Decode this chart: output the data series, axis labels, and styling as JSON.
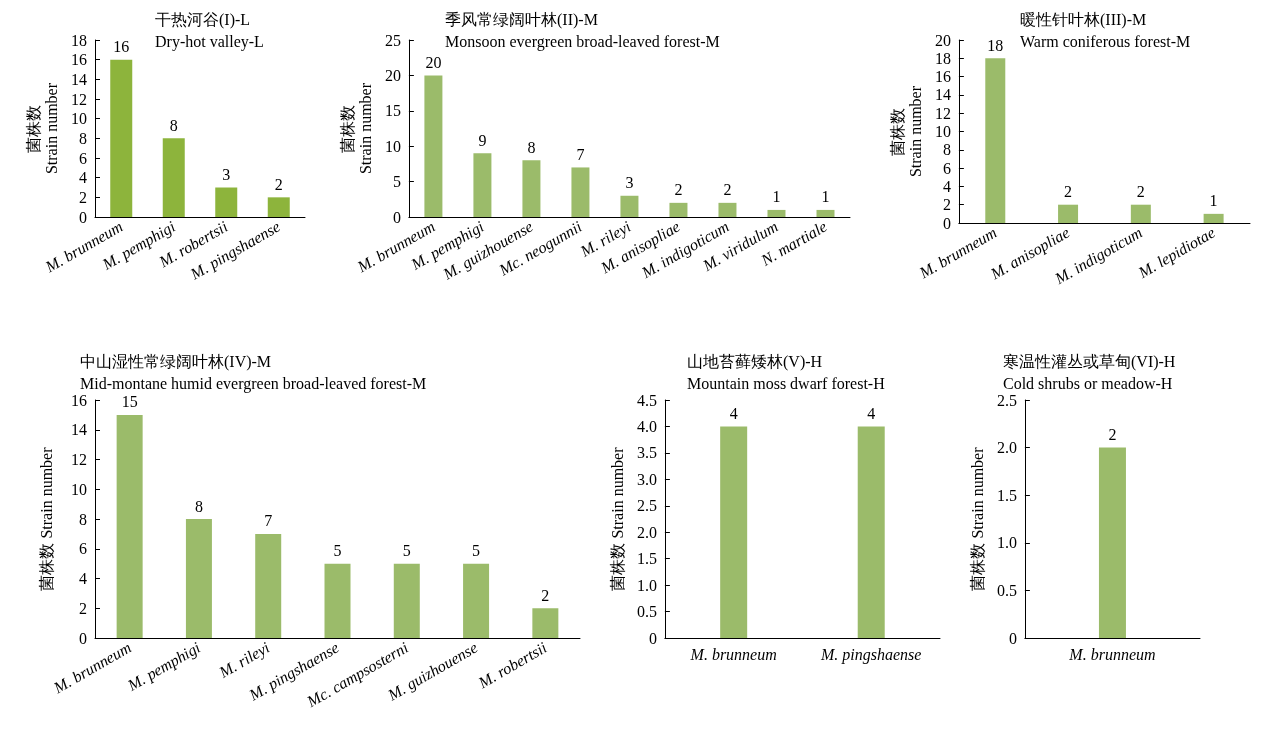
{
  "chart_data": [
    {
      "type": "bar",
      "title": "干热河谷(I)-L",
      "subtitle": "Dry-hot valley-L",
      "ylabel": "菌株数 Strain number",
      "categories": [
        "M. brunneum",
        "M. pemphigi",
        "M. robertsii",
        "M. pingshaense"
      ],
      "values": [
        16,
        8,
        3,
        2
      ],
      "color": "#8db43c",
      "ylim": [
        0,
        18
      ],
      "yticks": [
        0,
        2,
        4,
        6,
        8,
        10,
        12,
        14,
        16,
        18
      ],
      "data_labels": true,
      "grid": false
    },
    {
      "type": "bar",
      "title": "季风常绿阔叶林(II)-M",
      "subtitle": "Monsoon evergreen broad-leaved forest-M",
      "ylabel": "菌株数 Strain number",
      "categories": [
        "M. brunneum",
        "M. pemphigi",
        "M. guizhouense",
        "Mc. neogunnii",
        "M. rileyi",
        "M. anisopliae",
        "M. indigoticum",
        "M. viridulum",
        "N. martiale"
      ],
      "values": [
        20,
        9,
        8,
        7,
        3,
        2,
        2,
        1,
        1
      ],
      "color": "#9bbb6a",
      "ylim": [
        0,
        25
      ],
      "yticks": [
        0,
        5,
        10,
        15,
        20,
        25
      ],
      "data_labels": true,
      "grid": false
    },
    {
      "type": "bar",
      "title": "暖性针叶林(III)-M",
      "subtitle": "Warm coniferous forest-M",
      "ylabel": "菌株数 Strain number",
      "categories": [
        "M. brunneum",
        "M. anisopliae",
        "M. indigoticum",
        "M. lepidiotae"
      ],
      "values": [
        18,
        2,
        2,
        1
      ],
      "color": "#9bbb6a",
      "ylim": [
        0,
        20
      ],
      "yticks": [
        0,
        2,
        4,
        6,
        8,
        10,
        12,
        14,
        16,
        18,
        20
      ],
      "data_labels": true,
      "grid": false
    },
    {
      "type": "bar",
      "title": "中山湿性常绿阔叶林(IV)-M",
      "subtitle": "Mid-montane humid evergreen broad-leaved forest-M",
      "ylabel": "菌株数 Strain number",
      "categories": [
        "M. brunneum",
        "M. pemphigi",
        "M. rileyi",
        "M. pingshaense",
        "Mc. campsosterni",
        "M. guizhouense",
        "M. robertsii"
      ],
      "values": [
        15,
        8,
        7,
        5,
        5,
        5,
        2
      ],
      "color": "#9bbb6a",
      "ylim": [
        0,
        16
      ],
      "yticks": [
        0,
        2,
        4,
        6,
        8,
        10,
        12,
        14,
        16
      ],
      "data_labels": true,
      "grid": false
    },
    {
      "type": "bar",
      "title": "山地苔藓矮林(V)-H",
      "subtitle": "Mountain moss dwarf forest-H",
      "ylabel": "菌株数 Strain number",
      "categories": [
        "M. brunneum",
        "M. pingshaense"
      ],
      "values": [
        4,
        4
      ],
      "color": "#9bbb6a",
      "ylim": [
        0,
        4.5
      ],
      "yticks": [
        0,
        0.5,
        {
          "value": 1,
          "label": "1.0"
        },
        1.5,
        {
          "value": 2,
          "label": "2.0"
        },
        2.5,
        {
          "value": 3,
          "label": "3.0"
        },
        3.5,
        {
          "value": 4,
          "label": "4.0"
        },
        4.5
      ],
      "data_labels": true,
      "grid": false
    },
    {
      "type": "bar",
      "title": "寒温性灌丛或草甸(VI)-H",
      "subtitle": "Cold shrubs or meadow-H",
      "ylabel": "菌株数 Strain number",
      "categories": [
        "M. brunneum"
      ],
      "values": [
        2
      ],
      "color": "#9bbb6a",
      "ylim": [
        0,
        2.5
      ],
      "yticks": [
        0,
        0.5,
        {
          "value": 1,
          "label": "1.0"
        },
        1.5,
        {
          "value": 2,
          "label": "2.0"
        },
        2.5
      ],
      "data_labels": true,
      "grid": false
    }
  ]
}
